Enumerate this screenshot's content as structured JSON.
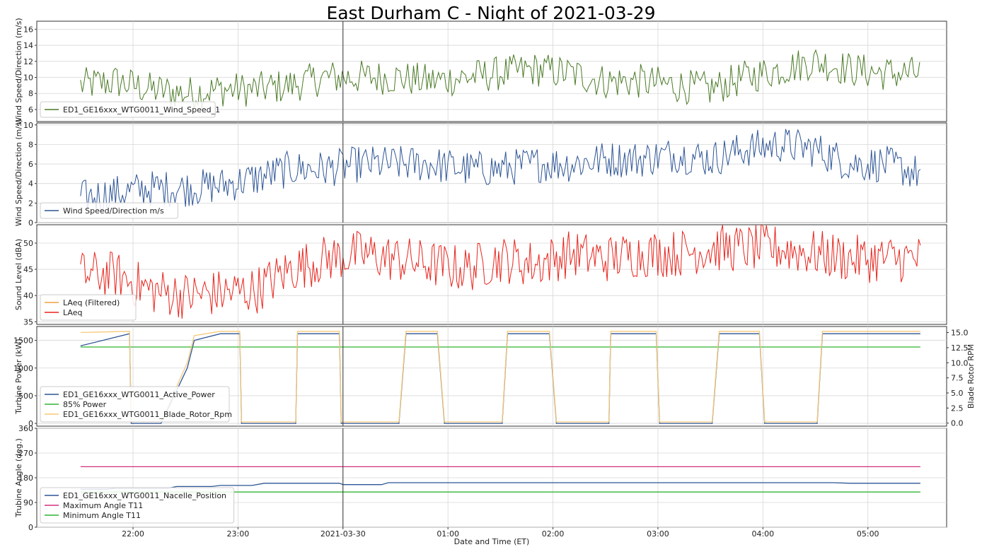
{
  "title": "East Durham C - Night of 2021-03-29",
  "xlabel": "Date and Time (ET)",
  "x_ticks": [
    "22:00",
    "23:00",
    "2021-03-30",
    "01:00",
    "02:00",
    "03:00",
    "04:00",
    "05:00"
  ],
  "x_range": [
    "2021-03-29 21:05",
    "2021-03-30 05:45"
  ],
  "cursor_time": "2021-03-30 00:00",
  "grid": true,
  "chart_data": [
    {
      "type": "line",
      "ylabel": "Wind Speed/Direction (m/s)",
      "ylim": [
        4.5,
        17
      ],
      "yticks": [
        6,
        8,
        10,
        12,
        14,
        16
      ],
      "legend_position": "lower left",
      "series": [
        {
          "name": "ED1_GE16xxx_WTG0011_Wind_Speed_1",
          "color": "#4a7a26",
          "x": [
            "21:30",
            "21:50",
            "22:10",
            "22:30",
            "22:50",
            "23:10",
            "23:30",
            "23:50",
            "00:10",
            "00:30",
            "00:50",
            "01:10",
            "01:30",
            "01:50",
            "02:10",
            "02:30",
            "02:50",
            "03:10",
            "03:30",
            "03:50",
            "04:10",
            "04:30",
            "04:50",
            "05:10",
            "05:30"
          ],
          "values": [
            9,
            9.5,
            8.5,
            8,
            8.5,
            8.5,
            9,
            10,
            10,
            10,
            9.5,
            10,
            10.5,
            11,
            10.5,
            9.5,
            9.5,
            9,
            8.5,
            10,
            11,
            12,
            11,
            10.5,
            10.5
          ]
        }
      ]
    },
    {
      "type": "line",
      "ylabel": "Wind Speed/Direction (m/s)",
      "ylim": [
        0,
        10.2
      ],
      "yticks": [
        0,
        2,
        4,
        6,
        8,
        10
      ],
      "legend_position": "lower left",
      "series": [
        {
          "name": "Wind Speed/Direction m/s",
          "color": "#2d5596",
          "x": [
            "21:30",
            "21:50",
            "22:10",
            "22:30",
            "22:50",
            "23:10",
            "23:30",
            "23:50",
            "00:10",
            "00:30",
            "00:50",
            "01:10",
            "01:30",
            "01:50",
            "02:10",
            "02:30",
            "02:50",
            "03:10",
            "03:30",
            "03:50",
            "04:10",
            "04:30",
            "04:50",
            "05:10",
            "05:30"
          ],
          "values": [
            2.5,
            3,
            3.5,
            3.5,
            3.8,
            4.5,
            5.5,
            5.5,
            6,
            6,
            6,
            5.5,
            5.5,
            6,
            6,
            6.5,
            6.5,
            7,
            6.5,
            7.5,
            8,
            7.5,
            6,
            6,
            5
          ]
        }
      ]
    },
    {
      "type": "line",
      "ylabel": "Sound Level (dBA)",
      "ylim": [
        34.5,
        53.5
      ],
      "yticks": [
        35,
        40,
        45,
        50
      ],
      "legend_position": "lower left",
      "series": [
        {
          "name": "LAeq (Filtered)",
          "color": "#f0a040",
          "x": [],
          "values": []
        },
        {
          "name": "LAeq",
          "color": "#e8241c",
          "x": [
            "21:30",
            "21:50",
            "22:10",
            "22:30",
            "22:50",
            "23:10",
            "23:30",
            "23:50",
            "00:10",
            "00:30",
            "00:50",
            "01:10",
            "01:30",
            "01:50",
            "02:10",
            "02:30",
            "02:50",
            "03:10",
            "03:30",
            "03:50",
            "04:10",
            "04:30",
            "04:50",
            "05:10",
            "05:30"
          ],
          "values": [
            44,
            44,
            41,
            40,
            40.5,
            41,
            45,
            47,
            48,
            47,
            46,
            45,
            47,
            46,
            48,
            47,
            48,
            48,
            49,
            49,
            49,
            48,
            47,
            47,
            47
          ]
        }
      ]
    },
    {
      "type": "line",
      "ylabel": "Turbine Power (kW)",
      "ylabel_right": "Blade Rotor RPM",
      "ylim": [
        -50,
        1750
      ],
      "yticks": [
        0,
        500,
        1000,
        1500
      ],
      "ylim_right": [
        -0.5,
        16
      ],
      "yticks_right": [
        0.0,
        2.5,
        5.0,
        7.5,
        10.0,
        12.5,
        15.0
      ],
      "legend_position": "lower left",
      "series": [
        {
          "name": "ED1_GE16xxx_WTG0011_Active_Power",
          "color": "#2d5596",
          "axis": "left",
          "x": [
            "21:30",
            "21:58",
            "21:59",
            "22:16",
            "22:31",
            "22:35",
            "22:50",
            "23:01",
            "23:02",
            "23:33",
            "23:34",
            "23:58",
            "23:59",
            "00:32",
            "00:36",
            "00:54",
            "00:58",
            "01:31",
            "01:34",
            "01:58",
            "02:02",
            "02:32",
            "02:33",
            "02:59",
            "03:01",
            "03:31",
            "03:35",
            "03:58",
            "04:01",
            "04:31",
            "04:34",
            "05:30"
          ],
          "values": [
            1400,
            1620,
            0,
            0,
            1000,
            1500,
            1620,
            1620,
            0,
            0,
            1620,
            1620,
            0,
            0,
            1620,
            1620,
            0,
            0,
            1620,
            1620,
            0,
            0,
            1620,
            1620,
            0,
            0,
            1620,
            1620,
            0,
            0,
            1620,
            1620
          ]
        },
        {
          "name": "85% Power",
          "color": "#32b432",
          "axis": "left",
          "x": [
            "21:30",
            "05:30"
          ],
          "values": [
            1380,
            1380
          ]
        },
        {
          "name": "ED1_GE16xxx_WTG0011_Blade_Rotor_Rpm",
          "color": "#f5c97a",
          "axis": "right",
          "x": [
            "21:30",
            "21:58",
            "21:59",
            "22:16",
            "22:31",
            "22:35",
            "22:50",
            "23:01",
            "23:02",
            "23:33",
            "23:34",
            "23:58",
            "23:59",
            "00:32",
            "00:36",
            "00:54",
            "00:58",
            "01:31",
            "01:34",
            "01:58",
            "02:02",
            "02:32",
            "02:33",
            "02:59",
            "03:01",
            "03:31",
            "03:35",
            "03:58",
            "04:01",
            "04:31",
            "04:34",
            "05:30"
          ],
          "values": [
            15,
            15.2,
            0.2,
            0.2,
            10,
            14.5,
            15.2,
            15.2,
            0.2,
            0.2,
            15.2,
            15.2,
            0.2,
            0.2,
            15.2,
            15.2,
            0.2,
            0.2,
            15.2,
            15.2,
            0.2,
            0.2,
            15.2,
            15.2,
            0.2,
            0.2,
            15.2,
            15.2,
            0.2,
            0.2,
            15.2,
            15.2
          ]
        }
      ]
    },
    {
      "type": "line",
      "ylabel": "Trubine Angle (deg.)",
      "ylim": [
        0,
        360
      ],
      "yticks": [
        0,
        90,
        180,
        270,
        360
      ],
      "legend_position": "lower left",
      "series": [
        {
          "name": "ED1_GE16xxx_WTG0011_Nacelle_Position",
          "color": "#2d5596",
          "x": [
            "21:30",
            "21:45",
            "21:50",
            "22:20",
            "22:25",
            "22:45",
            "22:50",
            "23:08",
            "23:15",
            "23:58",
            "24:00",
            "24:22",
            "24:26",
            "04:40",
            "04:50",
            "05:30"
          ],
          "values": [
            138,
            138,
            142,
            142,
            148,
            148,
            152,
            152,
            160,
            160,
            155,
            155,
            162,
            162,
            160,
            160
          ]
        },
        {
          "name": "Maximum Angle T11",
          "color": "#d0307f",
          "x": [
            "21:30",
            "05:30"
          ],
          "values": [
            220,
            220
          ]
        },
        {
          "name": "Minimum Angle T11",
          "color": "#32b432",
          "x": [
            "21:30",
            "05:30"
          ],
          "values": [
            128,
            128
          ]
        }
      ]
    }
  ]
}
